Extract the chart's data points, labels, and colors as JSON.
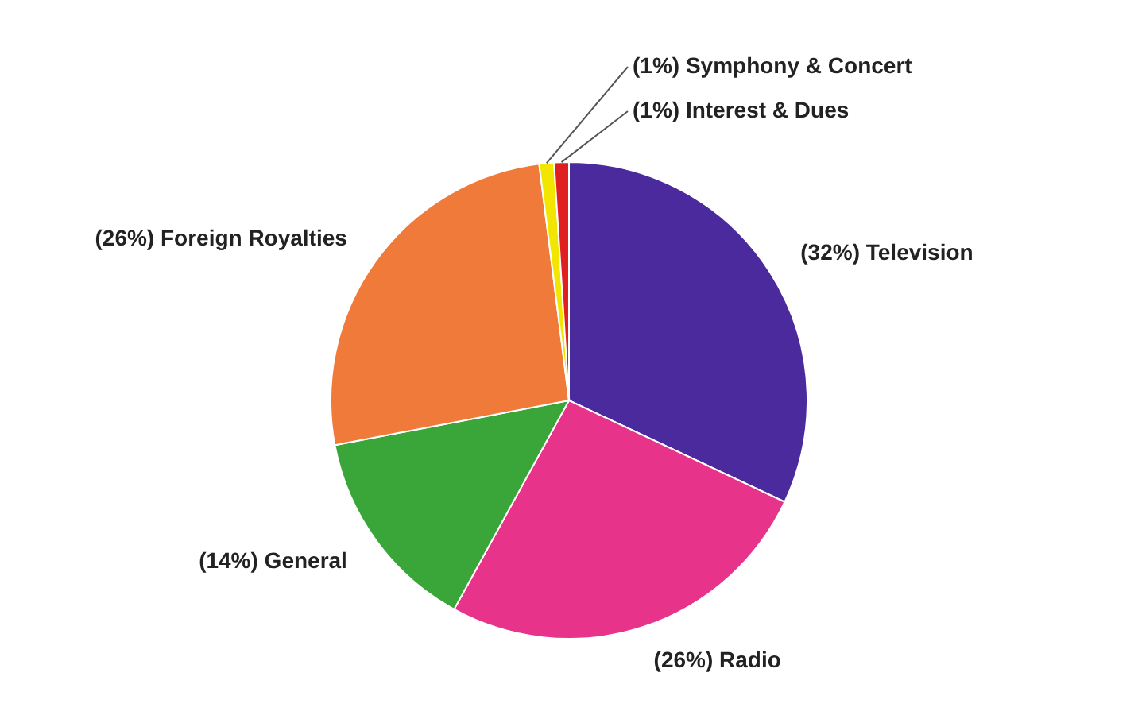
{
  "chart_data": {
    "type": "pie",
    "categories": [
      "Television",
      "Radio",
      "General",
      "Foreign Royalties",
      "Symphony & Concert",
      "Interest & Dues"
    ],
    "values": [
      32,
      26,
      14,
      26,
      1,
      1
    ],
    "value_labels": [
      "(32%)",
      "(26%)",
      "(14%)",
      "(26%)",
      "(1%)",
      "(1%)"
    ],
    "colors": [
      "#4b2a9e",
      "#e8338a",
      "#3aa63a",
      "#f07a3a",
      "#f2e600",
      "#e02020"
    ]
  }
}
